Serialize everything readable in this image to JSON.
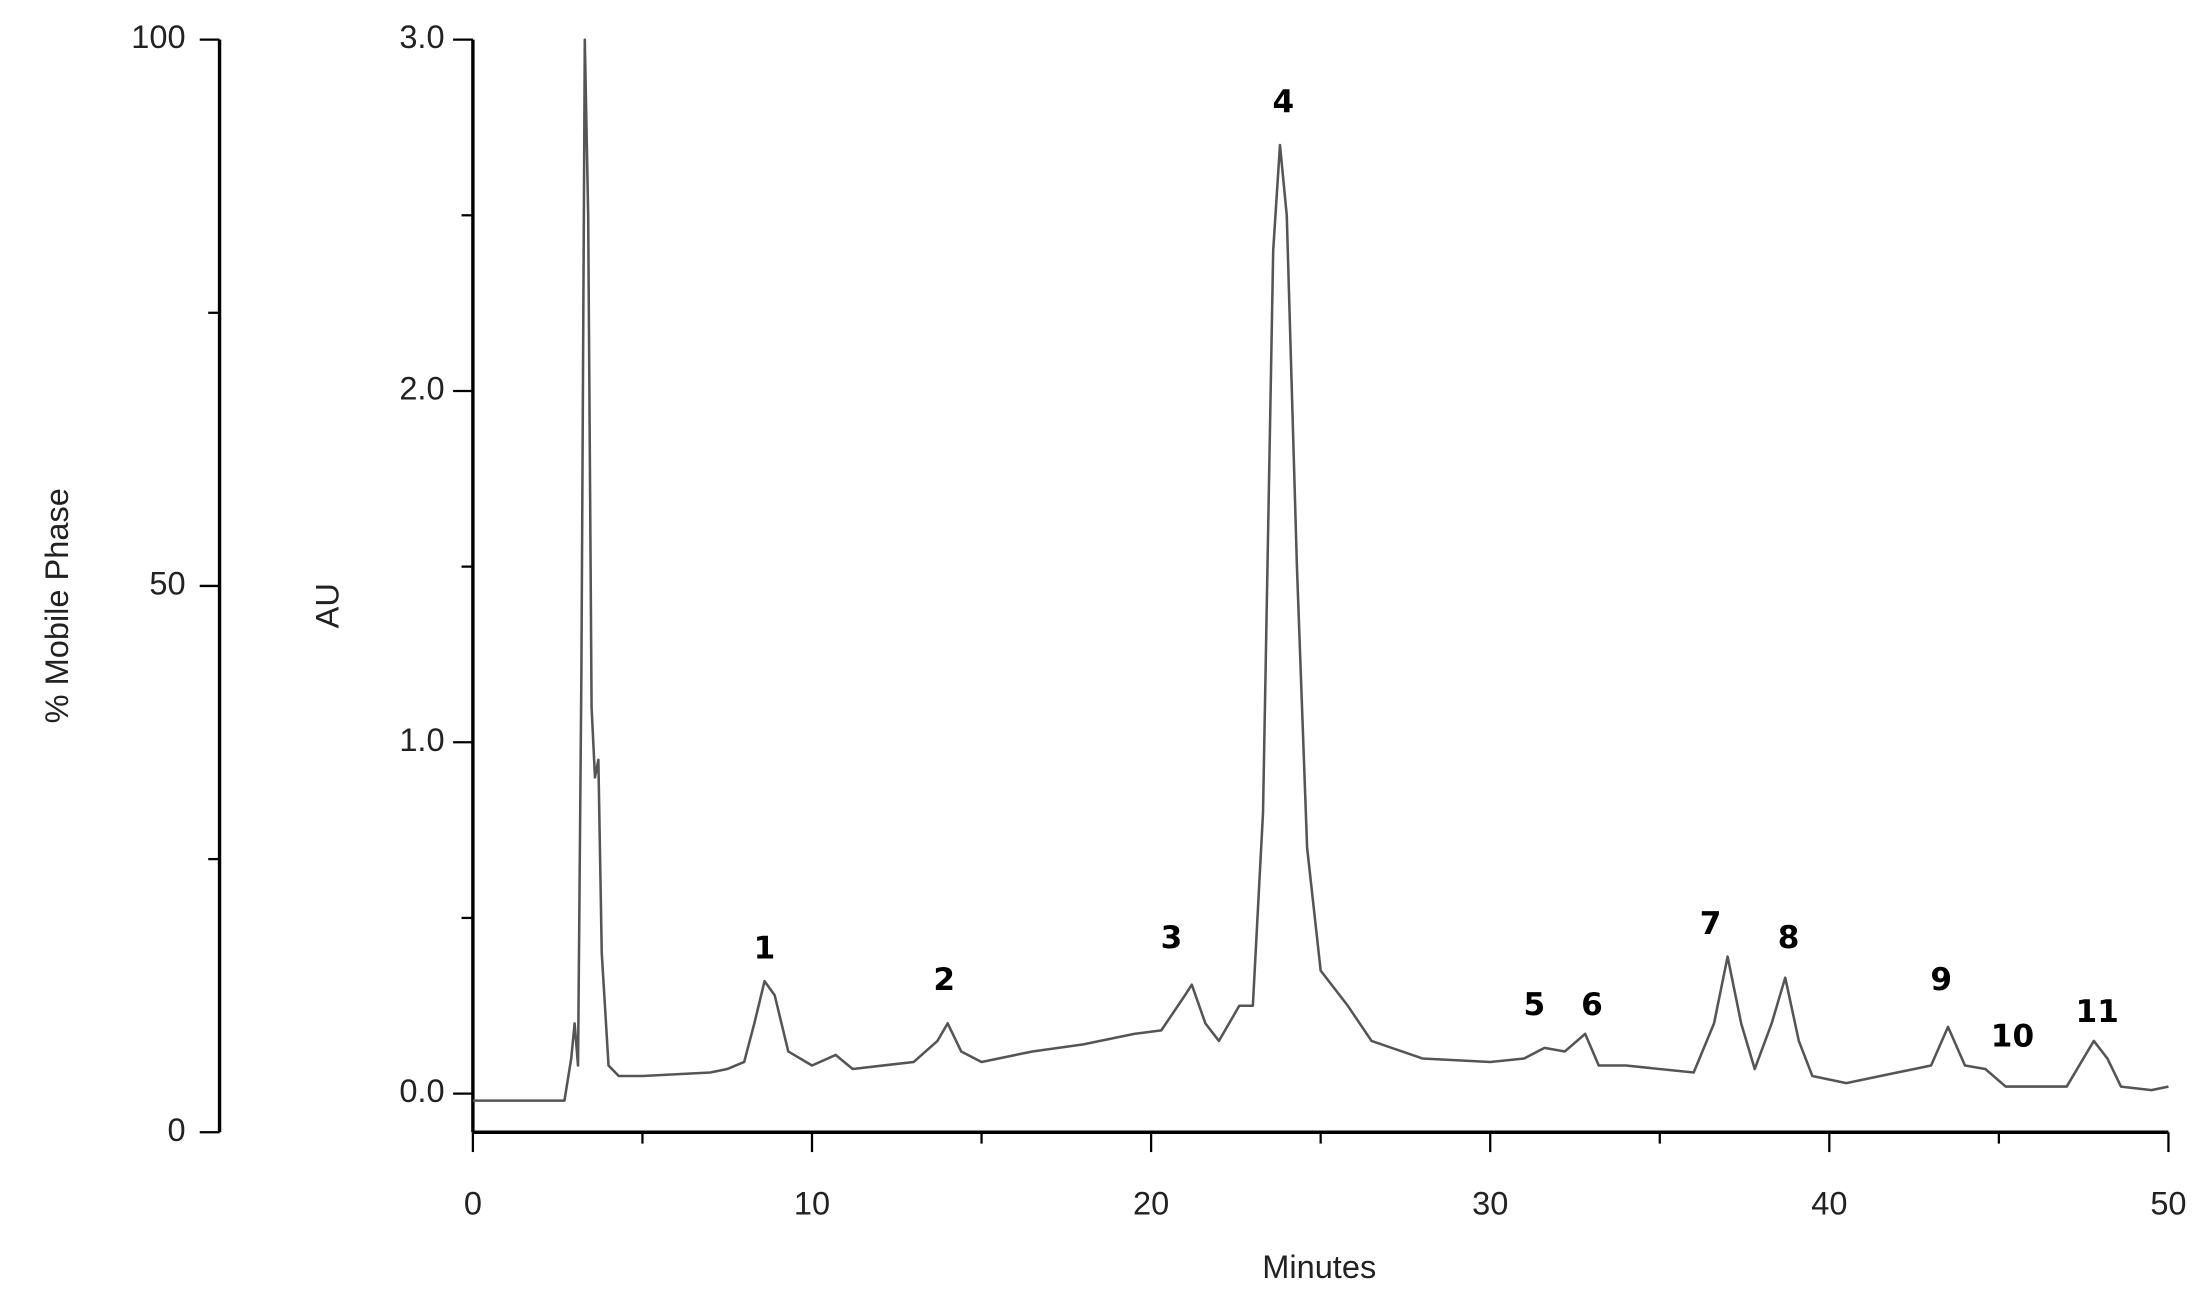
{
  "chart_data": {
    "type": "line",
    "x_label": "Minutes",
    "y_label": "AU",
    "y2_label": "% Mobile Phase",
    "color": "#555555",
    "x": [
      0,
      2.7,
      2.9,
      3.0,
      3.1,
      3.2,
      3.3,
      3.4,
      3.5,
      3.6,
      3.7,
      3.8,
      4.0,
      4.3,
      5.0,
      7.0,
      7.5,
      8.0,
      8.3,
      8.6,
      8.9,
      9.3,
      10.0,
      10.7,
      11.2,
      13.0,
      13.7,
      14.0,
      14.4,
      15.0,
      16.5,
      18.0,
      19.5,
      20.3,
      21.0,
      21.2,
      21.6,
      22.0,
      22.6,
      23.0,
      23.3,
      23.6,
      23.8,
      24.0,
      24.3,
      24.6,
      25.0,
      25.8,
      26.5,
      28.0,
      30.0,
      31.0,
      31.6,
      32.2,
      32.8,
      33.2,
      34.0,
      36.0,
      36.6,
      37.0,
      37.4,
      37.8,
      38.3,
      38.7,
      39.1,
      39.5,
      40.5,
      42.0,
      43.0,
      43.5,
      44.0,
      44.6,
      45.2,
      47.0,
      47.8,
      48.2,
      48.6,
      49.5,
      50.0
    ],
    "values": [
      -0.02,
      -0.02,
      0.1,
      0.2,
      0.08,
      1.2,
      3.0,
      2.5,
      1.1,
      0.9,
      0.95,
      0.4,
      0.08,
      0.05,
      0.05,
      0.06,
      0.07,
      0.09,
      0.2,
      0.32,
      0.28,
      0.12,
      0.08,
      0.11,
      0.07,
      0.09,
      0.15,
      0.2,
      0.12,
      0.09,
      0.12,
      0.14,
      0.17,
      0.18,
      0.28,
      0.31,
      0.2,
      0.15,
      0.25,
      0.25,
      0.8,
      2.4,
      2.7,
      2.5,
      1.5,
      0.7,
      0.35,
      0.25,
      0.15,
      0.1,
      0.09,
      0.1,
      0.13,
      0.12,
      0.17,
      0.08,
      0.08,
      0.06,
      0.2,
      0.39,
      0.2,
      0.07,
      0.2,
      0.33,
      0.15,
      0.05,
      0.03,
      0.06,
      0.08,
      0.19,
      0.08,
      0.07,
      0.02,
      0.02,
      0.15,
      0.1,
      0.02,
      0.01,
      0.02
    ],
    "xlim": [
      0,
      50
    ],
    "xticks": [
      0,
      10,
      20,
      30,
      40,
      50
    ],
    "xminorticks": [
      5,
      15,
      25,
      35,
      45
    ],
    "ylim": [
      -0.11,
      3.0
    ],
    "yticks": [
      {
        "value": 0,
        "label": "0.0"
      },
      {
        "value": 1,
        "label": "1.0"
      },
      {
        "value": 2,
        "label": "2.0"
      },
      {
        "value": 3,
        "label": "3.0"
      }
    ],
    "yminorticks": [
      0.5,
      1.5,
      2.5
    ],
    "y2lim": [
      0,
      100
    ],
    "y2ticks": [
      0,
      50,
      100
    ],
    "y2minorticks": [
      25,
      75
    ],
    "annotations": [
      {
        "text": "1",
        "x": 8.6,
        "y": 0.41
      },
      {
        "text": "2",
        "x": 13.9,
        "y": 0.32
      },
      {
        "text": "3",
        "x": 20.6,
        "y": 0.44
      },
      {
        "text": "4",
        "x": 23.9,
        "y": 2.82
      },
      {
        "text": "5",
        "x": 31.3,
        "y": 0.25
      },
      {
        "text": "6",
        "x": 33.0,
        "y": 0.25
      },
      {
        "text": "7",
        "x": 36.5,
        "y": 0.48
      },
      {
        "text": "8",
        "x": 38.8,
        "y": 0.44
      },
      {
        "text": "9",
        "x": 43.3,
        "y": 0.32
      },
      {
        "text": "10",
        "x": 45.4,
        "y": 0.16
      },
      {
        "text": "11",
        "x": 47.9,
        "y": 0.23
      }
    ]
  }
}
